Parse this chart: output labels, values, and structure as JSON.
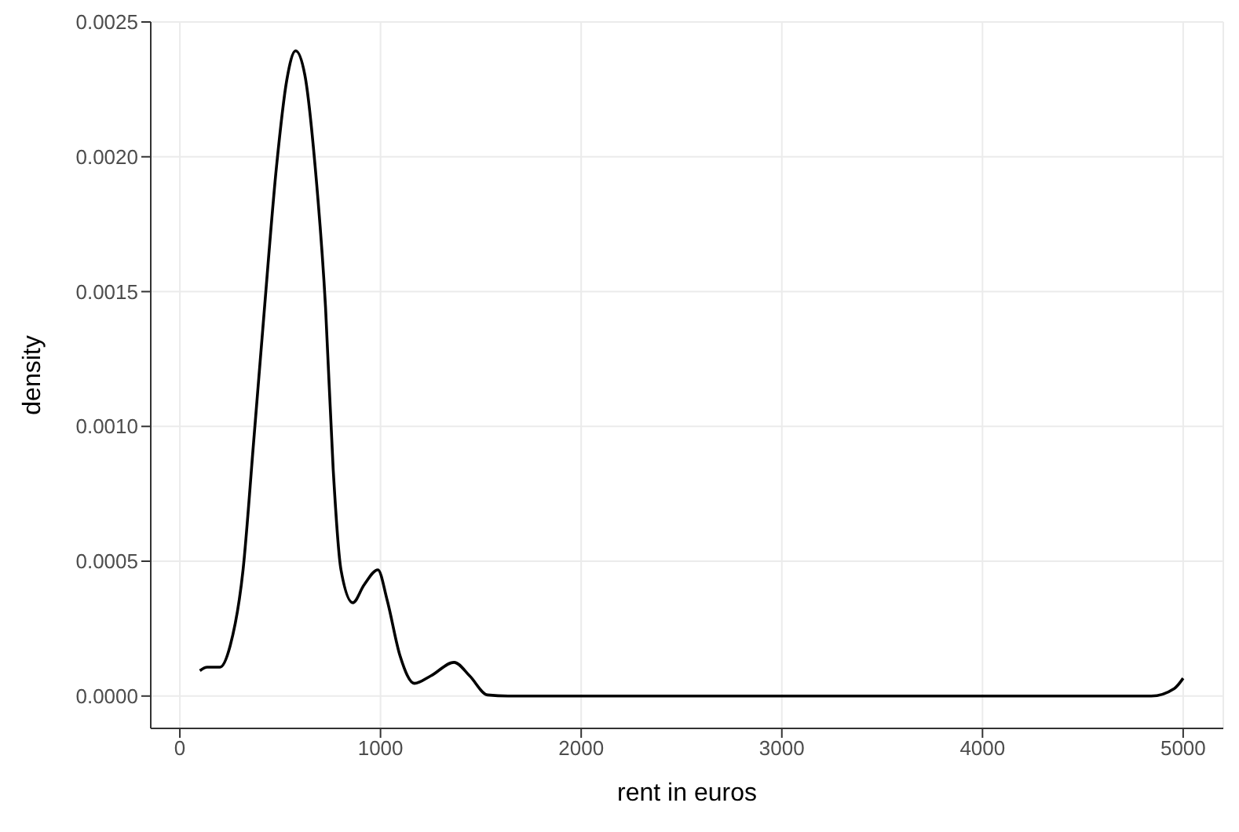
{
  "chart_data": {
    "type": "line",
    "xlabel": "rent in euros",
    "ylabel": "density",
    "x": [
      100,
      136,
      200,
      251,
      315,
      367,
      418,
      482,
      533,
      577,
      623,
      674,
      726,
      764,
      803,
      862,
      918,
      987,
      1033,
      1097,
      1169,
      1251,
      1367,
      1444,
      1533,
      1636,
      2500,
      3500,
      4841,
      4956,
      5000
    ],
    "series": [
      {
        "color": "#000000",
        "values": [
          9.4e-05,
          0.000107,
          0.000107,
          0.000187,
          0.000468,
          0.000936,
          0.001404,
          0.001966,
          0.002285,
          0.002393,
          0.002303,
          0.001966,
          0.001442,
          0.000843,
          0.000468,
          0.000346,
          0.000412,
          0.000468,
          0.000356,
          0.00015,
          4.7e-05,
          7.5e-05,
          0.000125,
          7.5e-05,
          4e-06,
          0,
          0,
          0,
          0,
          2.8e-05,
          6.6e-05
        ]
      }
    ],
    "xlim": [
      -145,
      5200
    ],
    "xticks": [
      0,
      1000,
      2000,
      3000,
      4000,
      5000
    ],
    "ylim": [
      -0.00012,
      0.0025
    ],
    "yticks": [
      {
        "value": 0,
        "label": "0.0000"
      },
      {
        "value": 0.0005,
        "label": "0.0005"
      },
      {
        "value": 0.001,
        "label": "0.0010"
      },
      {
        "value": 0.0015,
        "label": "0.0015"
      },
      {
        "value": 0.002,
        "label": "0.0020"
      },
      {
        "value": 0.0025,
        "label": "0.0025"
      }
    ],
    "grid": true,
    "marker": "none",
    "line_style": "solid",
    "legend": false
  }
}
